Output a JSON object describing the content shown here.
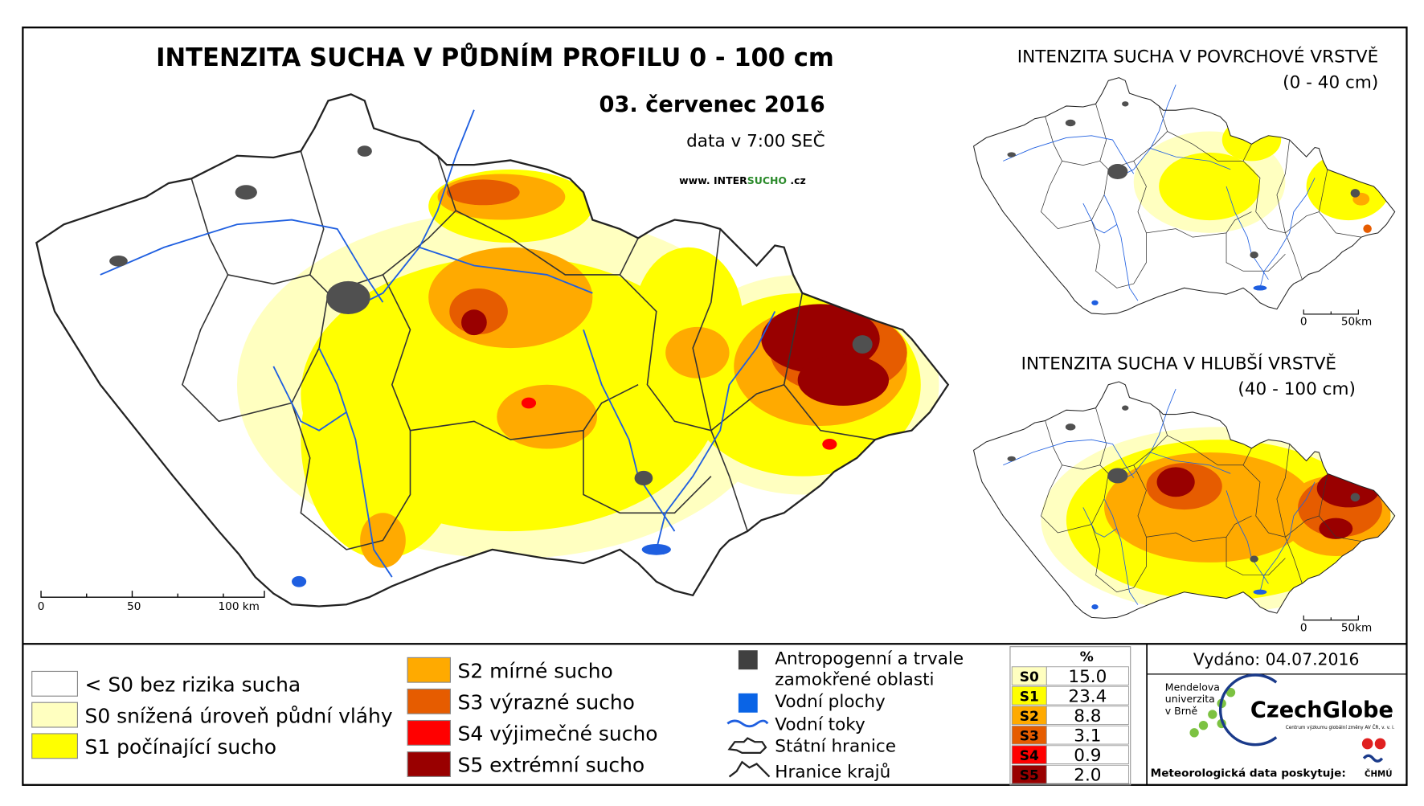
{
  "header": {
    "title": "INTENZITA SUCHA V PŮDNÍM PROFILU 0 - 100 cm",
    "date": "03. červenec 2016",
    "time": "data v 7:00 SEČ",
    "website": {
      "prefix": "www. ",
      "brand_a": "INTER",
      "brand_b": "SUCHO",
      "suffix": " .cz"
    }
  },
  "main_map": {
    "scale": [
      "0",
      "50",
      "100 km"
    ]
  },
  "insets": [
    {
      "title": "INTENZITA SUCHA V POVRCHOVÉ VRSTVĚ",
      "depth": "(0 - 40 cm)",
      "scale": [
        "0",
        "50km"
      ]
    },
    {
      "title": "INTENZITA SUCHA V HLUBŠÍ VRSTVĚ",
      "depth": "(40 - 100 cm)",
      "scale": [
        "0",
        "50km"
      ]
    }
  ],
  "legend": {
    "classes": [
      {
        "label": "< S0 bez rizika sucha",
        "color": "#ffffff"
      },
      {
        "label": "S0 snížená úroveň půdní vláhy",
        "color": "#ffffc0"
      },
      {
        "label": "S1 počínající sucho",
        "color": "#ffff00"
      },
      {
        "label": "S2 mírné sucho",
        "color": "#ffaa00"
      },
      {
        "label": "S3 výrazné sucho",
        "color": "#e65c00"
      },
      {
        "label": "S4 výjimečné sucho",
        "color": "#ff0000"
      },
      {
        "label": "S5 extrémní sucho",
        "color": "#990000"
      }
    ],
    "overlays": [
      {
        "label": [
          "Antropogenní a trvale",
          "zamokřené oblasti"
        ],
        "color": "#404040"
      },
      {
        "label": [
          "Vodní plochy"
        ],
        "color": "#0a64e6"
      },
      {
        "label": [
          "Vodní toky"
        ],
        "color": "#1f5fe0"
      },
      {
        "label": [
          "Státní hranice"
        ],
        "color": "#222222"
      },
      {
        "label": [
          "Hranice krajů"
        ],
        "color": "#222222"
      }
    ]
  },
  "table": {
    "header": "%",
    "rows": [
      {
        "class": "S0",
        "percent": "15.0"
      },
      {
        "class": "S1",
        "percent": "23.4"
      },
      {
        "class": "S2",
        "percent": "8.8"
      },
      {
        "class": "S3",
        "percent": "3.1"
      },
      {
        "class": "S4",
        "percent": "0.9"
      },
      {
        "class": "S5",
        "percent": "2.0"
      }
    ]
  },
  "footer": {
    "issued": "Vydáno: 04.07.2016",
    "mendel": [
      "Mendelova",
      "univerzita",
      "v Brně"
    ],
    "czechglobe": "CzechGlobe",
    "czechglobe_sub": "Centrum výzkumu globální změny AV ČR, v. v. i.",
    "provider": "Meteorologická data poskytuje:",
    "chmu": "ČHMÚ"
  }
}
